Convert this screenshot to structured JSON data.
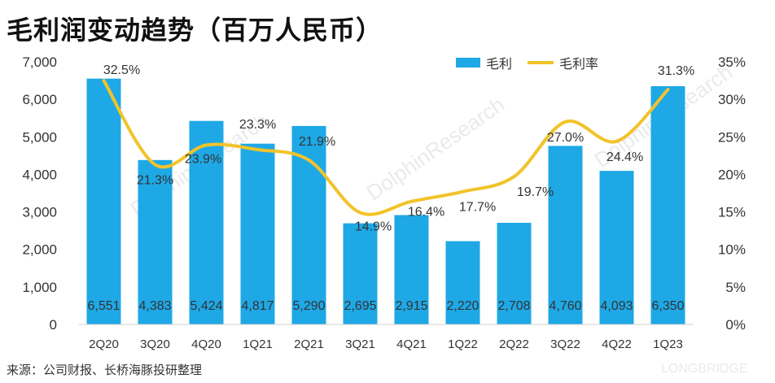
{
  "title": "毛利润变动趋势（百万人民币）",
  "source": "来源：公司财报、长桥海豚投研整理",
  "watermarks": {
    "brand": "DolphinResearch",
    "brand_small": "LONGBRIDGE"
  },
  "colors": {
    "bar": "#1ea8e6",
    "line": "#f2c32a"
  },
  "chart_data": {
    "type": "bar",
    "categories": [
      "2Q20",
      "3Q20",
      "4Q20",
      "1Q21",
      "2Q21",
      "3Q21",
      "4Q21",
      "1Q22",
      "2Q22",
      "3Q22",
      "4Q22",
      "1Q23"
    ],
    "series": [
      {
        "name": "毛利",
        "type": "bar",
        "axis": "left",
        "values": [
          6551,
          4383,
          5424,
          4817,
          5290,
          2695,
          2915,
          2220,
          2708,
          4760,
          4093,
          6350
        ],
        "labels": [
          "6,551",
          "4,383",
          "5,424",
          "4,817",
          "5,290",
          "2,695",
          "2,915",
          "2,220",
          "2,708",
          "4,760",
          "4,093",
          "6,350"
        ]
      },
      {
        "name": "毛利率",
        "type": "line",
        "axis": "right",
        "values": [
          32.5,
          21.3,
          23.9,
          23.3,
          21.9,
          14.9,
          16.4,
          17.7,
          19.7,
          27.0,
          24.4,
          31.3
        ],
        "labels": [
          "32.5%",
          "21.3%",
          "23.9%",
          "23.3%",
          "21.9%",
          "14.9%",
          "16.4%",
          "17.7%",
          "19.7%",
          "27.0%",
          "24.4%",
          "31.3%"
        ]
      }
    ],
    "y_left": {
      "min": 0,
      "max": 7000,
      "ticks": [
        "0",
        "1,000",
        "2,000",
        "3,000",
        "4,000",
        "5,000",
        "6,000",
        "7,000"
      ]
    },
    "y_right": {
      "min": 0,
      "max": 35,
      "ticks": [
        "0%",
        "5%",
        "10%",
        "15%",
        "20%",
        "25%",
        "30%",
        "35%"
      ]
    },
    "legend": {
      "position": "top-center"
    },
    "grid": false
  }
}
